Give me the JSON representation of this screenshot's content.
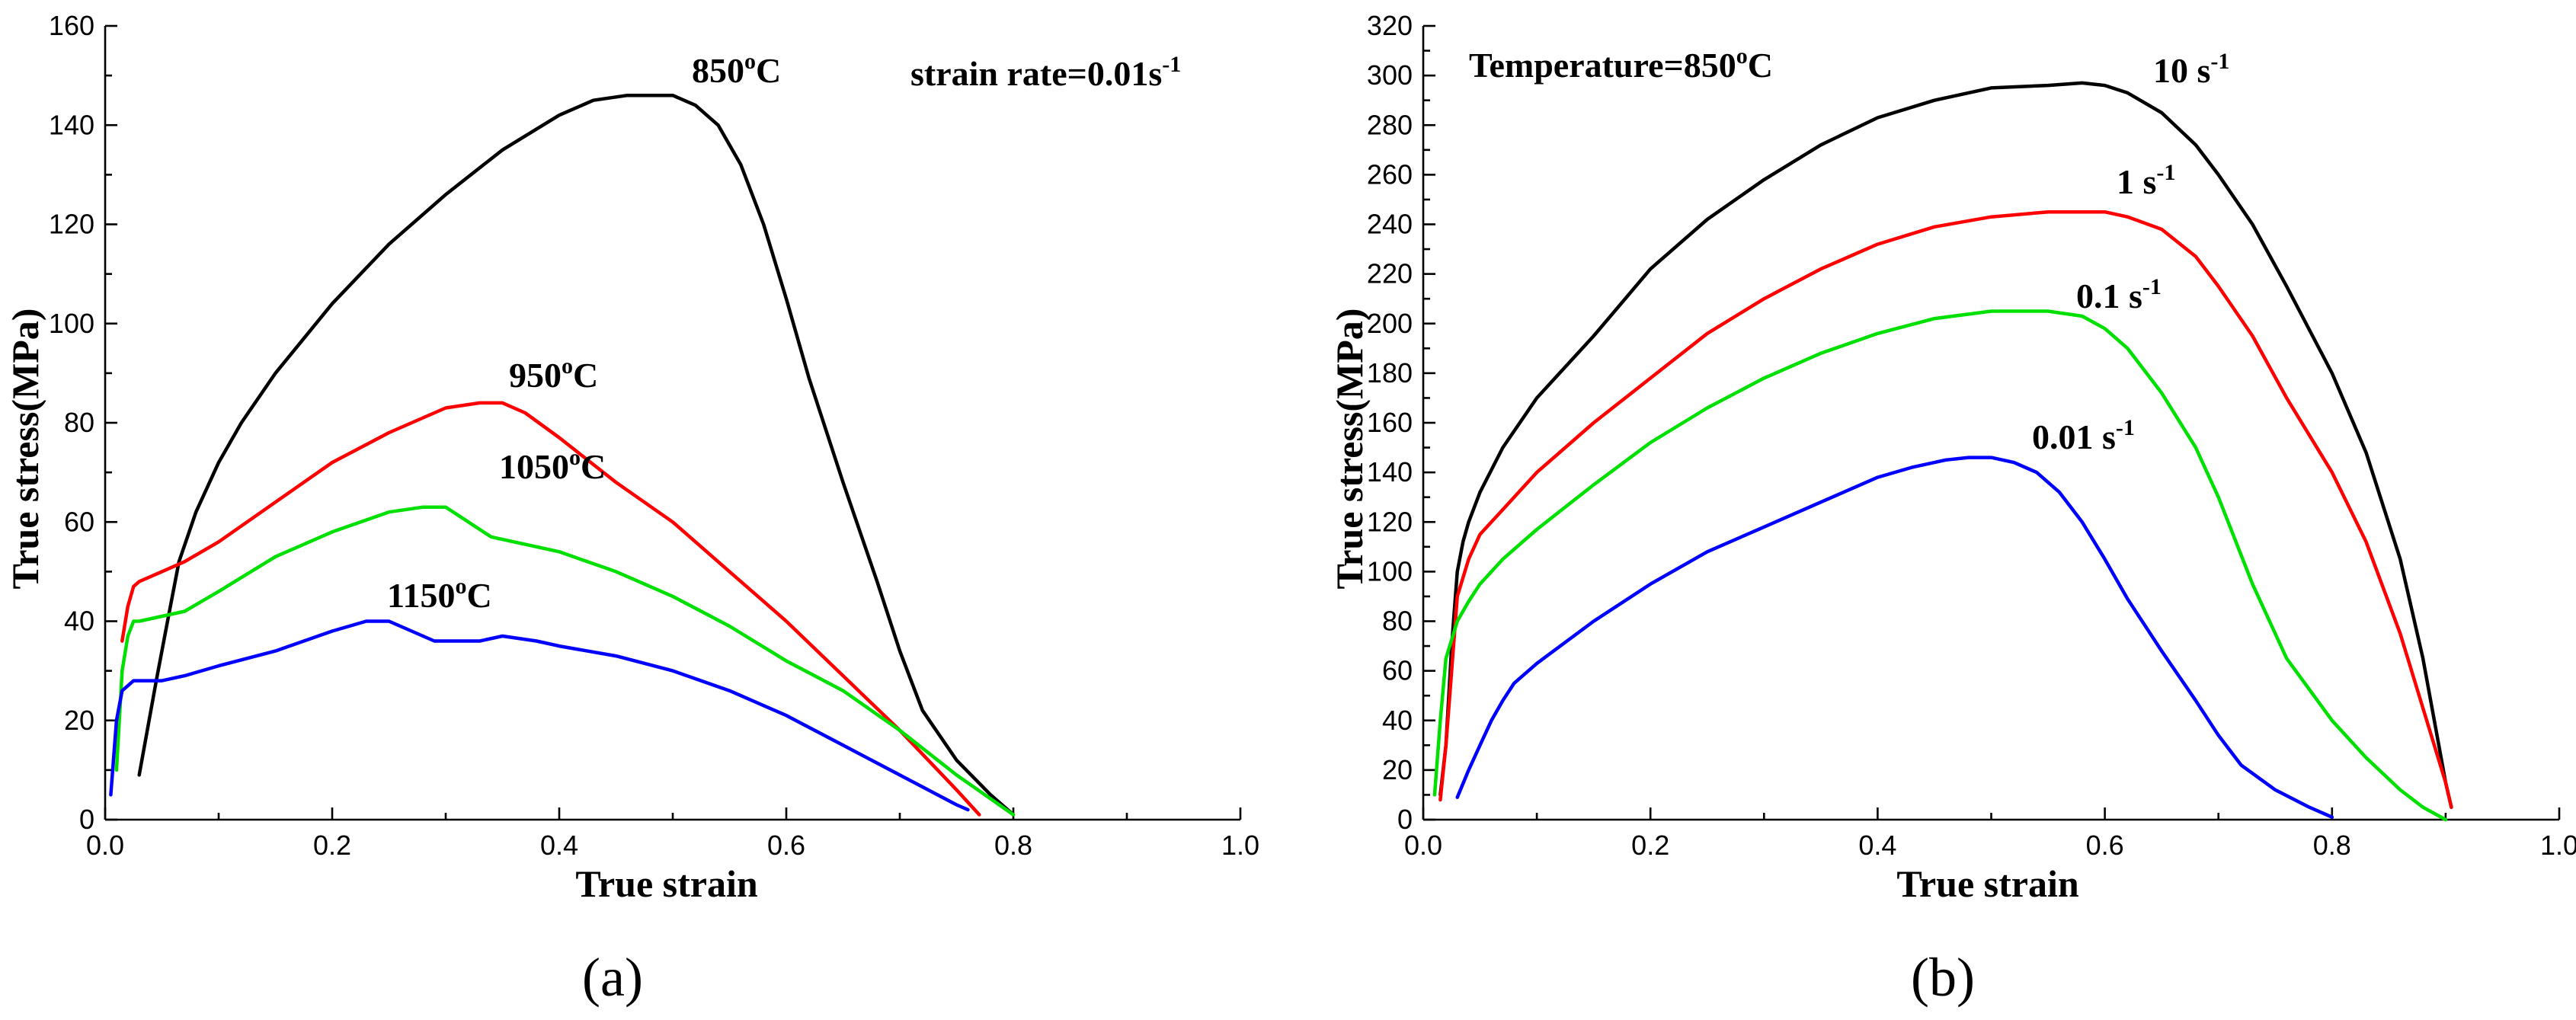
{
  "chart_data": [
    {
      "type": "line",
      "panel": "a",
      "panel_label": "a",
      "xlabel": "True strain",
      "ylabel": "True stress(MPa)",
      "xlim": [
        0.0,
        1.0
      ],
      "ylim": [
        0,
        160
      ],
      "xticks": [
        "0.0",
        "0.2",
        "0.4",
        "0.6",
        "0.8",
        "1.0"
      ],
      "yticks": [
        "0",
        "20",
        "40",
        "60",
        "80",
        "100",
        "120",
        "140",
        "160"
      ],
      "annotation": {
        "main": "strain rate=0.01s",
        "sup": "-1"
      },
      "series": [
        {
          "name": "850°C",
          "label_main": "850",
          "label_sup": "o",
          "label_tail": "C",
          "color": "#000000",
          "x": [
            0.03,
            0.045,
            0.055,
            0.065,
            0.08,
            0.1,
            0.12,
            0.15,
            0.2,
            0.25,
            0.3,
            0.35,
            0.4,
            0.43,
            0.46,
            0.48,
            0.5,
            0.52,
            0.54,
            0.56,
            0.58,
            0.6,
            0.62,
            0.65,
            0.68,
            0.7,
            0.72,
            0.75,
            0.78,
            0.8
          ],
          "y": [
            9,
            28,
            40,
            52,
            62,
            72,
            80,
            90,
            104,
            116,
            126,
            135,
            142,
            145,
            146,
            146,
            146,
            144,
            140,
            132,
            120,
            105,
            89,
            68,
            48,
            34,
            22,
            12,
            5,
            1
          ]
        },
        {
          "name": "950°C",
          "label_main": "950",
          "label_sup": "o",
          "label_tail": "C",
          "color": "#ff0000",
          "x": [
            0.015,
            0.02,
            0.025,
            0.03,
            0.05,
            0.07,
            0.1,
            0.15,
            0.2,
            0.25,
            0.3,
            0.33,
            0.35,
            0.37,
            0.4,
            0.45,
            0.5,
            0.55,
            0.6,
            0.65,
            0.7,
            0.75,
            0.77
          ],
          "y": [
            36,
            43,
            47,
            48,
            50,
            52,
            56,
            64,
            72,
            78,
            83,
            84,
            84,
            82,
            77,
            68,
            60,
            50,
            40,
            29,
            18,
            6,
            1
          ]
        },
        {
          "name": "1050°C",
          "label_main": "1050",
          "label_sup": "o",
          "label_tail": "C",
          "color": "#00e000",
          "x": [
            0.01,
            0.015,
            0.02,
            0.025,
            0.03,
            0.05,
            0.07,
            0.1,
            0.15,
            0.2,
            0.25,
            0.28,
            0.3,
            0.32,
            0.34,
            0.36,
            0.4,
            0.45,
            0.5,
            0.55,
            0.6,
            0.65,
            0.7,
            0.75,
            0.8
          ],
          "y": [
            10,
            30,
            37,
            40,
            40,
            41,
            42,
            46,
            53,
            58,
            62,
            63,
            63,
            60,
            57,
            56,
            54,
            50,
            45,
            39,
            32,
            26,
            18,
            9,
            1
          ]
        },
        {
          "name": "1150°C",
          "label_main": "1150",
          "label_sup": "o",
          "label_tail": "C",
          "color": "#0000ff",
          "x": [
            0.005,
            0.01,
            0.015,
            0.02,
            0.025,
            0.03,
            0.05,
            0.07,
            0.1,
            0.15,
            0.2,
            0.23,
            0.25,
            0.27,
            0.29,
            0.31,
            0.33,
            0.35,
            0.38,
            0.4,
            0.45,
            0.5,
            0.55,
            0.6,
            0.65,
            0.7,
            0.75,
            0.76
          ],
          "y": [
            5,
            20,
            26,
            27,
            28,
            28,
            28,
            29,
            31,
            34,
            38,
            40,
            40,
            38,
            36,
            36,
            36,
            37,
            36,
            35,
            33,
            30,
            26,
            21,
            15,
            9,
            3,
            2
          ]
        }
      ]
    },
    {
      "type": "line",
      "panel": "b",
      "panel_label": "b",
      "xlabel": "True strain",
      "ylabel": "True stress(MPa)",
      "xlim": [
        0.0,
        1.0
      ],
      "ylim": [
        0,
        320
      ],
      "xticks": [
        "0.0",
        "0.2",
        "0.4",
        "0.6",
        "0.8",
        "1.0"
      ],
      "yticks": [
        "0",
        "20",
        "40",
        "60",
        "80",
        "100",
        "120",
        "140",
        "160",
        "180",
        "200",
        "220",
        "240",
        "260",
        "280",
        "300",
        "320"
      ],
      "annotation": {
        "main": "Temperature=850",
        "sup": "o",
        "tail": "C"
      },
      "series": [
        {
          "name": "10 s-1",
          "label_main": "10 s",
          "label_sup": "-1",
          "color": "#000000",
          "x": [
            0.015,
            0.02,
            0.025,
            0.03,
            0.035,
            0.04,
            0.05,
            0.07,
            0.1,
            0.15,
            0.2,
            0.25,
            0.3,
            0.35,
            0.4,
            0.45,
            0.5,
            0.55,
            0.58,
            0.6,
            0.62,
            0.65,
            0.68,
            0.7,
            0.73,
            0.76,
            0.8,
            0.83,
            0.86,
            0.88,
            0.9,
            0.905
          ],
          "y": [
            10,
            30,
            70,
            100,
            112,
            120,
            132,
            150,
            170,
            195,
            222,
            242,
            258,
            272,
            283,
            290,
            295,
            296,
            297,
            296,
            293,
            285,
            272,
            260,
            240,
            215,
            180,
            148,
            105,
            65,
            15,
            5
          ]
        },
        {
          "name": "1 s-1",
          "label_main": "1 s",
          "label_sup": "-1",
          "color": "#ff0000",
          "x": [
            0.015,
            0.02,
            0.025,
            0.03,
            0.04,
            0.05,
            0.07,
            0.1,
            0.15,
            0.2,
            0.25,
            0.3,
            0.35,
            0.4,
            0.45,
            0.5,
            0.55,
            0.58,
            0.6,
            0.62,
            0.65,
            0.68,
            0.7,
            0.73,
            0.76,
            0.8,
            0.83,
            0.86,
            0.88,
            0.9,
            0.905
          ],
          "y": [
            8,
            30,
            60,
            90,
            105,
            115,
            125,
            140,
            160,
            178,
            196,
            210,
            222,
            232,
            239,
            243,
            245,
            245,
            245,
            243,
            238,
            227,
            215,
            195,
            170,
            140,
            112,
            75,
            45,
            15,
            5
          ]
        },
        {
          "name": "0.1 s-1",
          "label_main": "0.1 s",
          "label_sup": "-1",
          "color": "#00e000",
          "x": [
            0.01,
            0.015,
            0.02,
            0.03,
            0.04,
            0.05,
            0.07,
            0.1,
            0.15,
            0.2,
            0.25,
            0.3,
            0.35,
            0.4,
            0.45,
            0.5,
            0.55,
            0.58,
            0.6,
            0.62,
            0.65,
            0.68,
            0.7,
            0.73,
            0.76,
            0.8,
            0.83,
            0.86,
            0.88,
            0.9
          ],
          "y": [
            10,
            40,
            65,
            80,
            88,
            95,
            105,
            117,
            135,
            152,
            166,
            178,
            188,
            196,
            202,
            205,
            205,
            203,
            198,
            190,
            172,
            150,
            130,
            95,
            65,
            40,
            25,
            12,
            5,
            0
          ]
        },
        {
          "name": "0.01 s-1",
          "label_main": "0.01 s",
          "label_sup": "-1",
          "color": "#0000ff",
          "x": [
            0.03,
            0.04,
            0.05,
            0.06,
            0.07,
            0.08,
            0.1,
            0.15,
            0.2,
            0.25,
            0.3,
            0.35,
            0.4,
            0.43,
            0.46,
            0.48,
            0.5,
            0.52,
            0.54,
            0.56,
            0.58,
            0.6,
            0.62,
            0.65,
            0.68,
            0.7,
            0.72,
            0.75,
            0.78,
            0.8
          ],
          "y": [
            9,
            20,
            30,
            40,
            48,
            55,
            63,
            80,
            95,
            108,
            118,
            128,
            138,
            142,
            145,
            146,
            146,
            144,
            140,
            132,
            120,
            105,
            89,
            68,
            48,
            34,
            22,
            12,
            5,
            1
          ]
        }
      ]
    }
  ]
}
